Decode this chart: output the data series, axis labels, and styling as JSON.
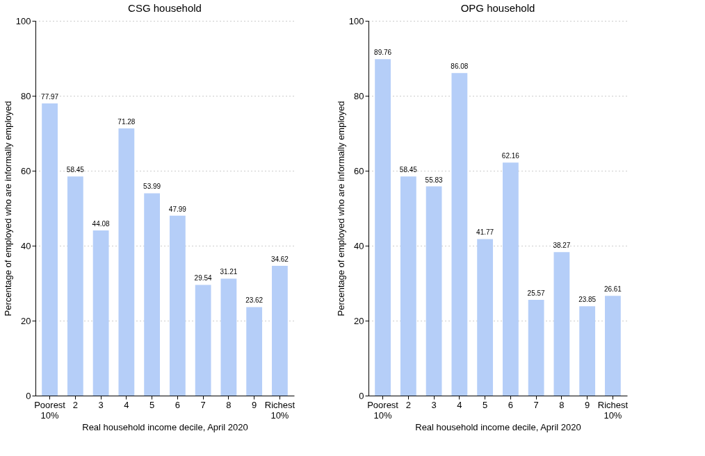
{
  "chart_data": [
    {
      "type": "bar",
      "title": "CSG household",
      "xlabel": "Real household income decile, April 2020",
      "ylabel": "Percentage of employed who are informally employed",
      "categories": [
        "Poorest 10%",
        "2",
        "3",
        "4",
        "5",
        "6",
        "7",
        "8",
        "9",
        "Richest 10%"
      ],
      "values": [
        77.97,
        58.45,
        44.08,
        71.28,
        53.99,
        47.99,
        29.54,
        31.21,
        23.62,
        34.62
      ],
      "color": "#b5cef8",
      "ylim": [
        0,
        100
      ],
      "yticks": [
        0,
        20,
        40,
        60,
        80,
        100
      ],
      "grid": "y",
      "data_labels": true
    },
    {
      "type": "bar",
      "title": "OPG household",
      "xlabel": "Real household income decile, April 2020",
      "ylabel": "Percentage of employed who are informally employed",
      "categories": [
        "Poorest 10%",
        "2",
        "3",
        "4",
        "5",
        "6",
        "7",
        "8",
        "9",
        "Richest 10%"
      ],
      "values": [
        89.76,
        58.45,
        55.83,
        86.08,
        41.77,
        62.16,
        25.57,
        38.27,
        23.85,
        26.61
      ],
      "color": "#b5cef8",
      "ylim": [
        0,
        100
      ],
      "yticks": [
        0,
        20,
        40,
        60,
        80,
        100
      ],
      "grid": "y",
      "data_labels": true
    }
  ]
}
